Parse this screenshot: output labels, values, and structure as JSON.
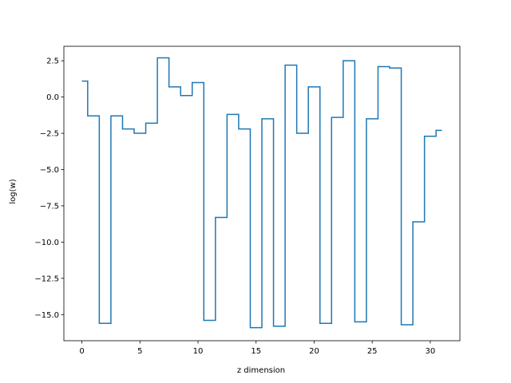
{
  "chart_data": {
    "type": "line",
    "drawstyle": "steps-mid",
    "title": "",
    "xlabel": "z dimension",
    "ylabel": "log(w)",
    "xlim": [
      -1.55,
      32.55
    ],
    "ylim": [
      -16.8,
      3.5
    ],
    "xticks": [
      0,
      5,
      10,
      15,
      20,
      25,
      30
    ],
    "xtick_labels": [
      "0",
      "5",
      "10",
      "15",
      "20",
      "25",
      "30"
    ],
    "yticks": [
      2.5,
      0.0,
      -2.5,
      -5.0,
      -7.5,
      -10.0,
      -12.5,
      -15.0
    ],
    "ytick_labels": [
      "2.5",
      "0.0",
      "−2.5",
      "−5.0",
      "−7.5",
      "−10.0",
      "−12.5",
      "−15.0"
    ],
    "grid": false,
    "series": [
      {
        "color": "#1f77b4",
        "x": [
          0,
          1,
          2,
          3,
          4,
          5,
          6,
          7,
          8,
          9,
          10,
          11,
          12,
          13,
          14,
          15,
          16,
          17,
          18,
          19,
          20,
          21,
          22,
          23,
          24,
          25,
          26,
          27,
          28,
          29,
          30,
          31
        ],
        "y": [
          1.1,
          -1.3,
          -15.6,
          -1.3,
          -2.2,
          -2.5,
          -1.8,
          2.7,
          0.7,
          0.1,
          1.0,
          -15.4,
          -8.3,
          -1.2,
          -2.2,
          -15.9,
          -1.5,
          -15.8,
          2.2,
          -2.5,
          0.7,
          -15.6,
          -1.4,
          2.5,
          -15.5,
          -1.5,
          2.1,
          2.0,
          -15.7,
          -8.6,
          -2.7,
          -2.3
        ]
      }
    ]
  }
}
